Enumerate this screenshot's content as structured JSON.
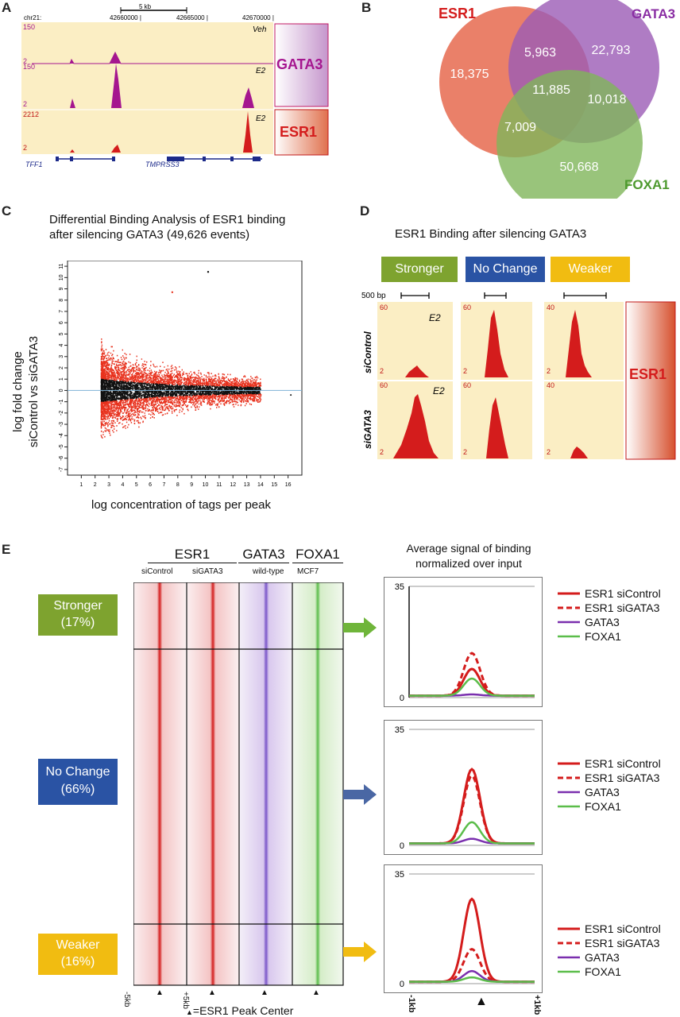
{
  "panels": {
    "a": "A",
    "b": "B",
    "c": "C",
    "d": "D",
    "e": "E"
  },
  "panelA": {
    "scale_label": "5 kb",
    "chrom": "chr21:",
    "coords": [
      "42660000 |",
      "42665000 |",
      "42670000 |"
    ],
    "tracks": [
      {
        "cond": "Veh",
        "max": "150",
        "min": "2"
      },
      {
        "cond": "E2",
        "max": "150",
        "min": "2"
      },
      {
        "cond": "E2",
        "max": "2212",
        "min": "2"
      }
    ],
    "label_gata3": "GATA3",
    "label_esr1": "ESR1",
    "genes": [
      "TFF1",
      "TMPRSS3"
    ],
    "colors": {
      "gata3": "#a5168f",
      "esr1": "#d41c1c"
    }
  },
  "panelB": {
    "labels": {
      "esr1": "ESR1",
      "gata3": "GATA3",
      "foxa1": "FOXA1"
    },
    "counts": {
      "esr1_only": "18,375",
      "gata3_only": "22,793",
      "foxa1_only": "50,668",
      "esr1_gata3": "5,963",
      "gata3_foxa1": "10,018",
      "esr1_foxa1": "7,009",
      "all": "11,885"
    },
    "colors": {
      "esr1": "#e66a4f",
      "gata3": "#9b5bb5",
      "foxa1": "#7fb55a"
    }
  },
  "panelC": {
    "title_line1": "Differential Binding Analysis of ESR1 binding",
    "title_line2": "after silencing GATA3 (49,626 events)",
    "ylabel_line1": "log fold change",
    "ylabel_line2": "siControl vs siGATA3",
    "xlabel": "log concentration of tags per peak",
    "chart_data": {
      "type": "scatter",
      "title": "Differential Binding Analysis of ESR1 binding after silencing GATA3 (49,626 events)",
      "xlabel": "log concentration of tags per peak",
      "ylabel": "log fold change siControl vs siGATA3",
      "xlim": [
        0,
        17
      ],
      "ylim": [
        -7.5,
        11.5
      ],
      "xticks": [
        1,
        2,
        3,
        4,
        5,
        6,
        7,
        8,
        9,
        10,
        11,
        12,
        13,
        14,
        15,
        16
      ],
      "yticks": [
        -7,
        -6,
        -5,
        -4,
        -3,
        -2,
        -1,
        0,
        1,
        2,
        3,
        4,
        5,
        6,
        7,
        8,
        9,
        10,
        11
      ],
      "baseline": 0,
      "series": [
        {
          "name": "significant",
          "color": "#e8321e"
        },
        {
          "name": "not significant",
          "color": "#111111"
        }
      ]
    }
  },
  "panelD": {
    "title": "ESR1 Binding after silencing GATA3",
    "buttons": [
      "Stronger",
      "No Change",
      "Weaker"
    ],
    "scale": "500 bp",
    "rows": [
      "siControl",
      "siGATA3"
    ],
    "cond": "E2",
    "maxes": [
      [
        "60",
        "60",
        "40"
      ],
      [
        "60",
        "60",
        "40"
      ]
    ],
    "min": "2",
    "esr1": "ESR1"
  },
  "panelE": {
    "header_esr1": "ESR1",
    "header_gata3": "GATA3",
    "header_foxa1": "FOXA1",
    "sub": [
      "siControl",
      "siGATA3",
      "wild-type",
      "MCF7"
    ],
    "groups": [
      {
        "name": "Stronger",
        "pct": "(17%)"
      },
      {
        "name": "No Change",
        "pct": "(66%)"
      },
      {
        "name": "Weaker",
        "pct": "(16%)"
      }
    ],
    "x_left": "-5kb",
    "x_right": "+5kb",
    "peak_note": "=ESR1 Peak Center",
    "avg_title_line1": "Average signal of binding",
    "avg_title_line2": "normalized over input",
    "y_max": "35",
    "y_min": "0",
    "avg_x_left": "-1kb",
    "avg_x_right": "+1kb",
    "legend": [
      "ESR1 siControl",
      "ESR1 siGATA3",
      "GATA3",
      "FOXA1"
    ],
    "chart_data": [
      {
        "type": "line",
        "title": "Stronger",
        "ylim": [
          0,
          35
        ],
        "x": [
          -1,
          0,
          1
        ],
        "series": [
          {
            "name": "ESR1 siControl",
            "peak": 9
          },
          {
            "name": "ESR1 siGATA3",
            "peak": 14
          },
          {
            "name": "GATA3",
            "peak": 1
          },
          {
            "name": "FOXA1",
            "peak": 6
          }
        ]
      },
      {
        "type": "line",
        "title": "No Change",
        "ylim": [
          0,
          35
        ],
        "x": [
          -1,
          0,
          1
        ],
        "series": [
          {
            "name": "ESR1 siControl",
            "peak": 23
          },
          {
            "name": "ESR1 siGATA3",
            "peak": 21
          },
          {
            "name": "GATA3",
            "peak": 2
          },
          {
            "name": "FOXA1",
            "peak": 7
          }
        ]
      },
      {
        "type": "line",
        "title": "Weaker",
        "ylim": [
          0,
          35
        ],
        "x": [
          -1,
          0,
          1
        ],
        "series": [
          {
            "name": "ESR1 siControl",
            "peak": 27
          },
          {
            "name": "ESR1 siGATA3",
            "peak": 11
          },
          {
            "name": "GATA3",
            "peak": 4
          },
          {
            "name": "FOXA1",
            "peak": 2
          }
        ]
      }
    ],
    "colors": {
      "esr1": "#d41c1c",
      "gata3": "#7a2fae",
      "foxa1": "#5bbd4a",
      "arrow_green": "#6fb53a",
      "arrow_blue": "#4a67a4",
      "arrow_yellow": "#f1bc11"
    }
  }
}
